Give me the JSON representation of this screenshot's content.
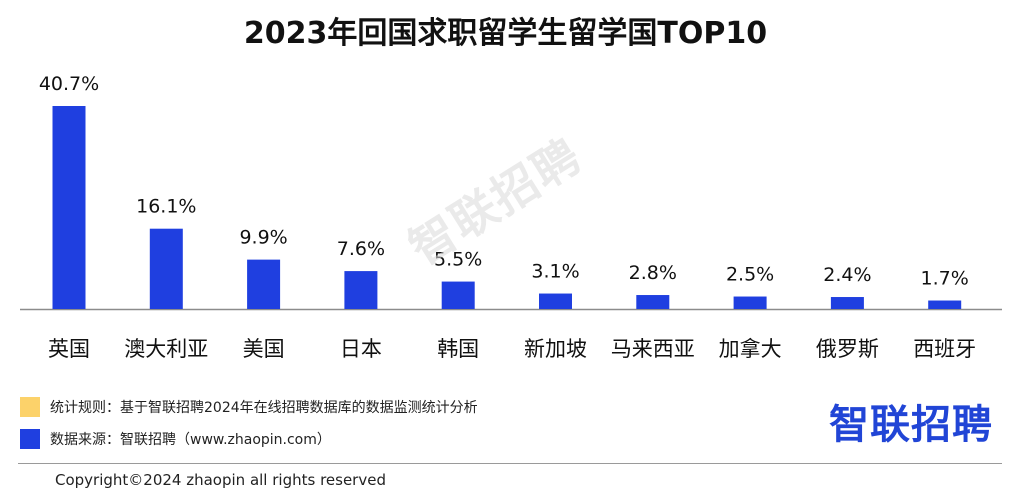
{
  "chart_data": {
    "type": "bar",
    "title": "2023年回国求职留学生留学国TOP10",
    "categories": [
      "英国",
      "澳大利亚",
      "美国",
      "日本",
      "韩国",
      "新加坡",
      "马来西亚",
      "加拿大",
      "俄罗斯",
      "西班牙"
    ],
    "values": [
      40.7,
      16.1,
      9.9,
      7.6,
      5.5,
      3.1,
      2.8,
      2.5,
      2.4,
      1.7
    ],
    "value_labels": [
      "40.7%",
      "16.1%",
      "9.9%",
      "7.6%",
      "5.5%",
      "3.1%",
      "2.8%",
      "2.5%",
      "2.4%",
      "1.7%"
    ],
    "unit": "%",
    "bar_color": "#1f3fe0",
    "grid": false,
    "legend": "none"
  },
  "watermark": "智联招聘",
  "notes": [
    {
      "text": "统计规则：基于智联招聘2024年在线招聘数据库的数据监测统计分析",
      "color": "#fcd26a"
    },
    {
      "text": "数据来源：智联招聘（www.zhaopin.com）",
      "color": "#1f3fe0"
    }
  ],
  "brand": "智联招聘",
  "copyright": "Copyright©2024 zhaopin all rights reserved"
}
